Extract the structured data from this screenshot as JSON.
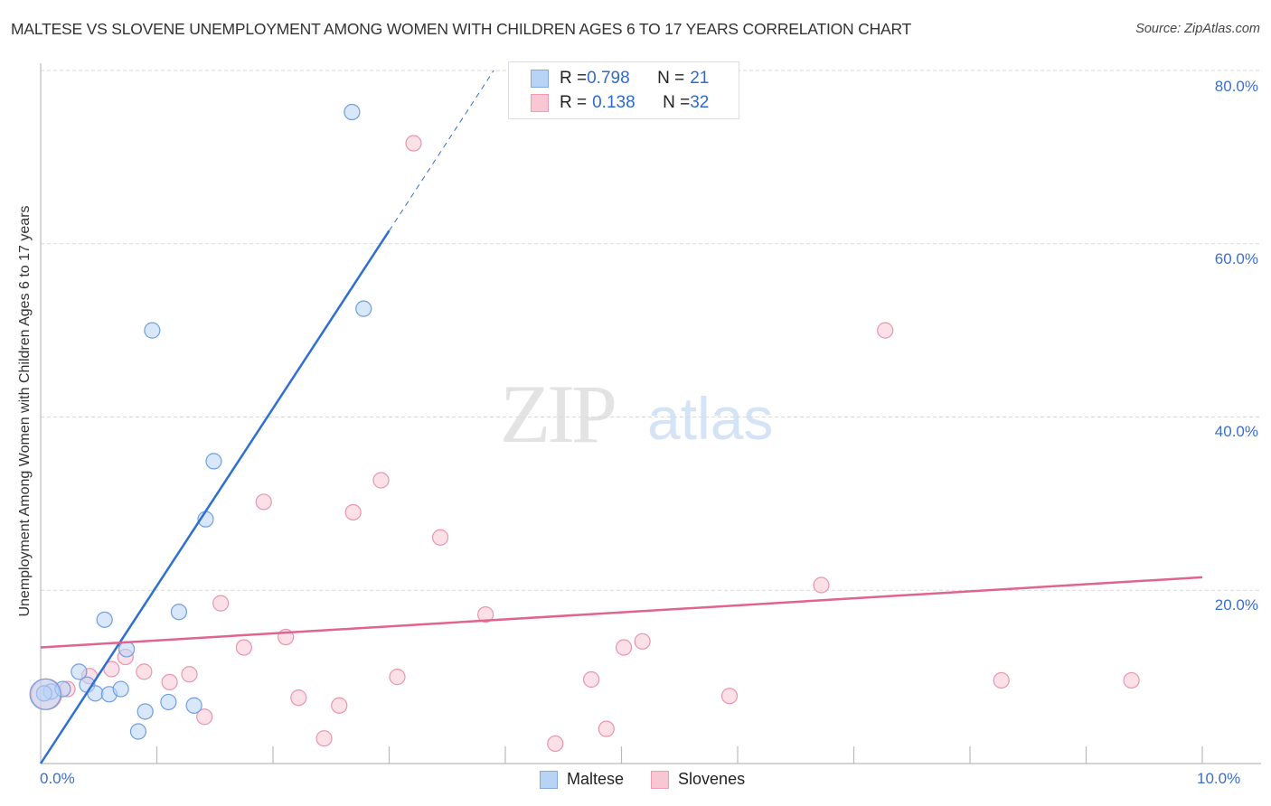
{
  "header": {
    "title": "MALTESE VS SLOVENE UNEMPLOYMENT AMONG WOMEN WITH CHILDREN AGES 6 TO 17 YEARS CORRELATION CHART",
    "source": "Source: ZipAtlas.com"
  },
  "watermark": {
    "zip": "ZIP",
    "atlas": "atlas"
  },
  "axes": {
    "ylabel": "Unemployment Among Women with Children Ages 6 to 17 years",
    "yticks": [
      "80.0%",
      "60.0%",
      "40.0%",
      "20.0%"
    ],
    "xticks": [
      "0.0%",
      "10.0%"
    ]
  },
  "legend": {
    "maltese": {
      "r_label": "R = ",
      "r_value": "0.798",
      "n_label": "N = ",
      "n_value": "21"
    },
    "slovenes": {
      "r_label": "R = ",
      "r_value": "0.138",
      "n_label": "N = ",
      "n_value": "32"
    },
    "bottom": [
      "Maltese",
      "Slovenes"
    ]
  },
  "colors": {
    "maltese_fill": "#b9d3f5",
    "maltese_stroke": "#6f9fe0",
    "maltese_line": "#2e6fd1",
    "slovenes_fill": "#f9c6d4",
    "slovenes_stroke": "#e895ae",
    "slovenes_line": "#e0648e",
    "tick_label": "#3b6fcb"
  },
  "chart_data": {
    "type": "scatter",
    "title": "MALTESE VS SLOVENE UNEMPLOYMENT AMONG WOMEN WITH CHILDREN AGES 6 TO 17 YEARS CORRELATION CHART",
    "xlabel": "",
    "ylabel": "Unemployment Among Women with Children Ages 6 to 17 years",
    "xlim": [
      0,
      10
    ],
    "ylim": [
      0,
      80
    ],
    "x_unit": "%",
    "y_unit": "%",
    "grid": true,
    "legend_position": "top-center",
    "series": [
      {
        "name": "Maltese",
        "R": 0.798,
        "N": 21,
        "points": [
          {
            "x": 2.68,
            "y": 75.2
          },
          {
            "x": 0.96,
            "y": 50.0
          },
          {
            "x": 2.78,
            "y": 52.5
          },
          {
            "x": 1.49,
            "y": 34.9
          },
          {
            "x": 1.42,
            "y": 28.2
          },
          {
            "x": 1.19,
            "y": 17.5
          },
          {
            "x": 0.55,
            "y": 16.6
          },
          {
            "x": 0.74,
            "y": 13.2
          },
          {
            "x": 0.33,
            "y": 10.6
          },
          {
            "x": 0.4,
            "y": 9.1
          },
          {
            "x": 0.09,
            "y": 8.3
          },
          {
            "x": 0.03,
            "y": 8.1
          },
          {
            "x": 0.19,
            "y": 8.6
          },
          {
            "x": 0.47,
            "y": 8.1
          },
          {
            "x": 0.59,
            "y": 8.0
          },
          {
            "x": 0.69,
            "y": 8.6
          },
          {
            "x": 1.1,
            "y": 7.1
          },
          {
            "x": 1.32,
            "y": 6.7
          },
          {
            "x": 0.9,
            "y": 6.0
          },
          {
            "x": 0.84,
            "y": 3.7
          },
          {
            "x": 0.04,
            "y": 8.0
          }
        ],
        "trendline": {
          "x0": 0.0,
          "y0": 0.0,
          "x1": 3.0,
          "y1": 61.5,
          "dashed_to": {
            "x": 3.9,
            "y": 80.0
          }
        }
      },
      {
        "name": "Slovenes",
        "R": 0.138,
        "N": 32,
        "points": [
          {
            "x": 3.21,
            "y": 71.6
          },
          {
            "x": 7.27,
            "y": 50.0
          },
          {
            "x": 2.93,
            "y": 32.7
          },
          {
            "x": 1.92,
            "y": 30.2
          },
          {
            "x": 2.69,
            "y": 29.0
          },
          {
            "x": 3.44,
            "y": 26.1
          },
          {
            "x": 6.72,
            "y": 20.6
          },
          {
            "x": 1.55,
            "y": 18.5
          },
          {
            "x": 3.83,
            "y": 17.2
          },
          {
            "x": 2.11,
            "y": 14.6
          },
          {
            "x": 1.75,
            "y": 13.4
          },
          {
            "x": 5.18,
            "y": 14.1
          },
          {
            "x": 5.02,
            "y": 13.4
          },
          {
            "x": 0.73,
            "y": 12.3
          },
          {
            "x": 0.61,
            "y": 10.9
          },
          {
            "x": 0.89,
            "y": 10.6
          },
          {
            "x": 1.28,
            "y": 10.3
          },
          {
            "x": 0.42,
            "y": 10.1
          },
          {
            "x": 1.11,
            "y": 9.4
          },
          {
            "x": 3.07,
            "y": 10.0
          },
          {
            "x": 4.74,
            "y": 9.7
          },
          {
            "x": 8.27,
            "y": 9.6
          },
          {
            "x": 9.39,
            "y": 9.6
          },
          {
            "x": 2.22,
            "y": 7.6
          },
          {
            "x": 5.93,
            "y": 7.8
          },
          {
            "x": 2.57,
            "y": 6.7
          },
          {
            "x": 1.41,
            "y": 5.4
          },
          {
            "x": 4.87,
            "y": 4.0
          },
          {
            "x": 2.44,
            "y": 2.9
          },
          {
            "x": 4.43,
            "y": 2.3
          },
          {
            "x": 0.05,
            "y": 8.0
          },
          {
            "x": 0.23,
            "y": 8.6
          }
        ],
        "trendline": {
          "x0": 0.0,
          "y0": 13.4,
          "x1": 10.0,
          "y1": 21.5
        }
      }
    ]
  }
}
